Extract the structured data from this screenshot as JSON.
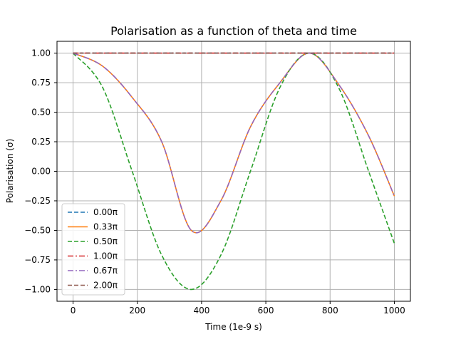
{
  "chart_data": {
    "type": "line",
    "title": "Polarisation as a function of theta and time",
    "xlabel": "Time (1e-9 s)",
    "ylabel": "Polarisation (σ)",
    "xlim": [
      -50,
      1050
    ],
    "ylim": [
      -1.1,
      1.1
    ],
    "xticks": [
      0,
      200,
      400,
      600,
      800,
      1000
    ],
    "xtick_labels": [
      "0",
      "200",
      "400",
      "600",
      "800",
      "1000"
    ],
    "yticks": [
      1.0,
      0.75,
      0.5,
      0.25,
      0.0,
      -0.25,
      -0.5,
      -0.75,
      -1.0
    ],
    "ytick_labels": [
      "1.00",
      "0.75",
      "0.50",
      "0.25",
      "0.00",
      "−0.25",
      "−0.50",
      "−0.75",
      "−1.00"
    ],
    "grid": true,
    "legend_position": "lower-left",
    "series": [
      {
        "name": "0.00π",
        "color": "#1f77b4",
        "linestyle": "dashed",
        "x": [
          0,
          1000
        ],
        "y": [
          1.0,
          1.0
        ]
      },
      {
        "name": "0.33π",
        "color": "#ff7f0e",
        "linestyle": "solid",
        "x": [
          0,
          92,
          184,
          276,
          368,
          460,
          552,
          644,
          736,
          828,
          920,
          1000
        ],
        "y": [
          1.0,
          0.89,
          0.625,
          0.25,
          -0.5,
          -0.25,
          0.375,
          0.75,
          1.0,
          0.73,
          0.3,
          -0.21
        ]
      },
      {
        "name": "0.50π",
        "color": "#2ca02c",
        "linestyle": "dashed",
        "x": [
          0,
          92,
          184,
          276,
          368,
          460,
          552,
          644,
          736,
          828,
          920,
          1000
        ],
        "y": [
          1.0,
          0.71,
          0.0,
          -0.71,
          -1.0,
          -0.71,
          0.0,
          0.71,
          1.0,
          0.7,
          0.0,
          -0.61
        ]
      },
      {
        "name": "1.00π",
        "color": "#d62728",
        "linestyle": "dashdot",
        "x": [
          0,
          1000
        ],
        "y": [
          1.0,
          1.0
        ]
      },
      {
        "name": "0.67π",
        "color": "#9467bd",
        "linestyle": "dashdot",
        "x": [
          0,
          92,
          184,
          276,
          368,
          460,
          552,
          644,
          736,
          828,
          920,
          1000
        ],
        "y": [
          1.0,
          0.89,
          0.625,
          0.25,
          -0.5,
          -0.25,
          0.375,
          0.75,
          1.0,
          0.73,
          0.3,
          -0.21
        ]
      },
      {
        "name": "2.00π",
        "color": "#8c564b",
        "linestyle": "dashed",
        "x": [
          0,
          1000
        ],
        "y": [
          1.0,
          1.0
        ]
      }
    ]
  }
}
